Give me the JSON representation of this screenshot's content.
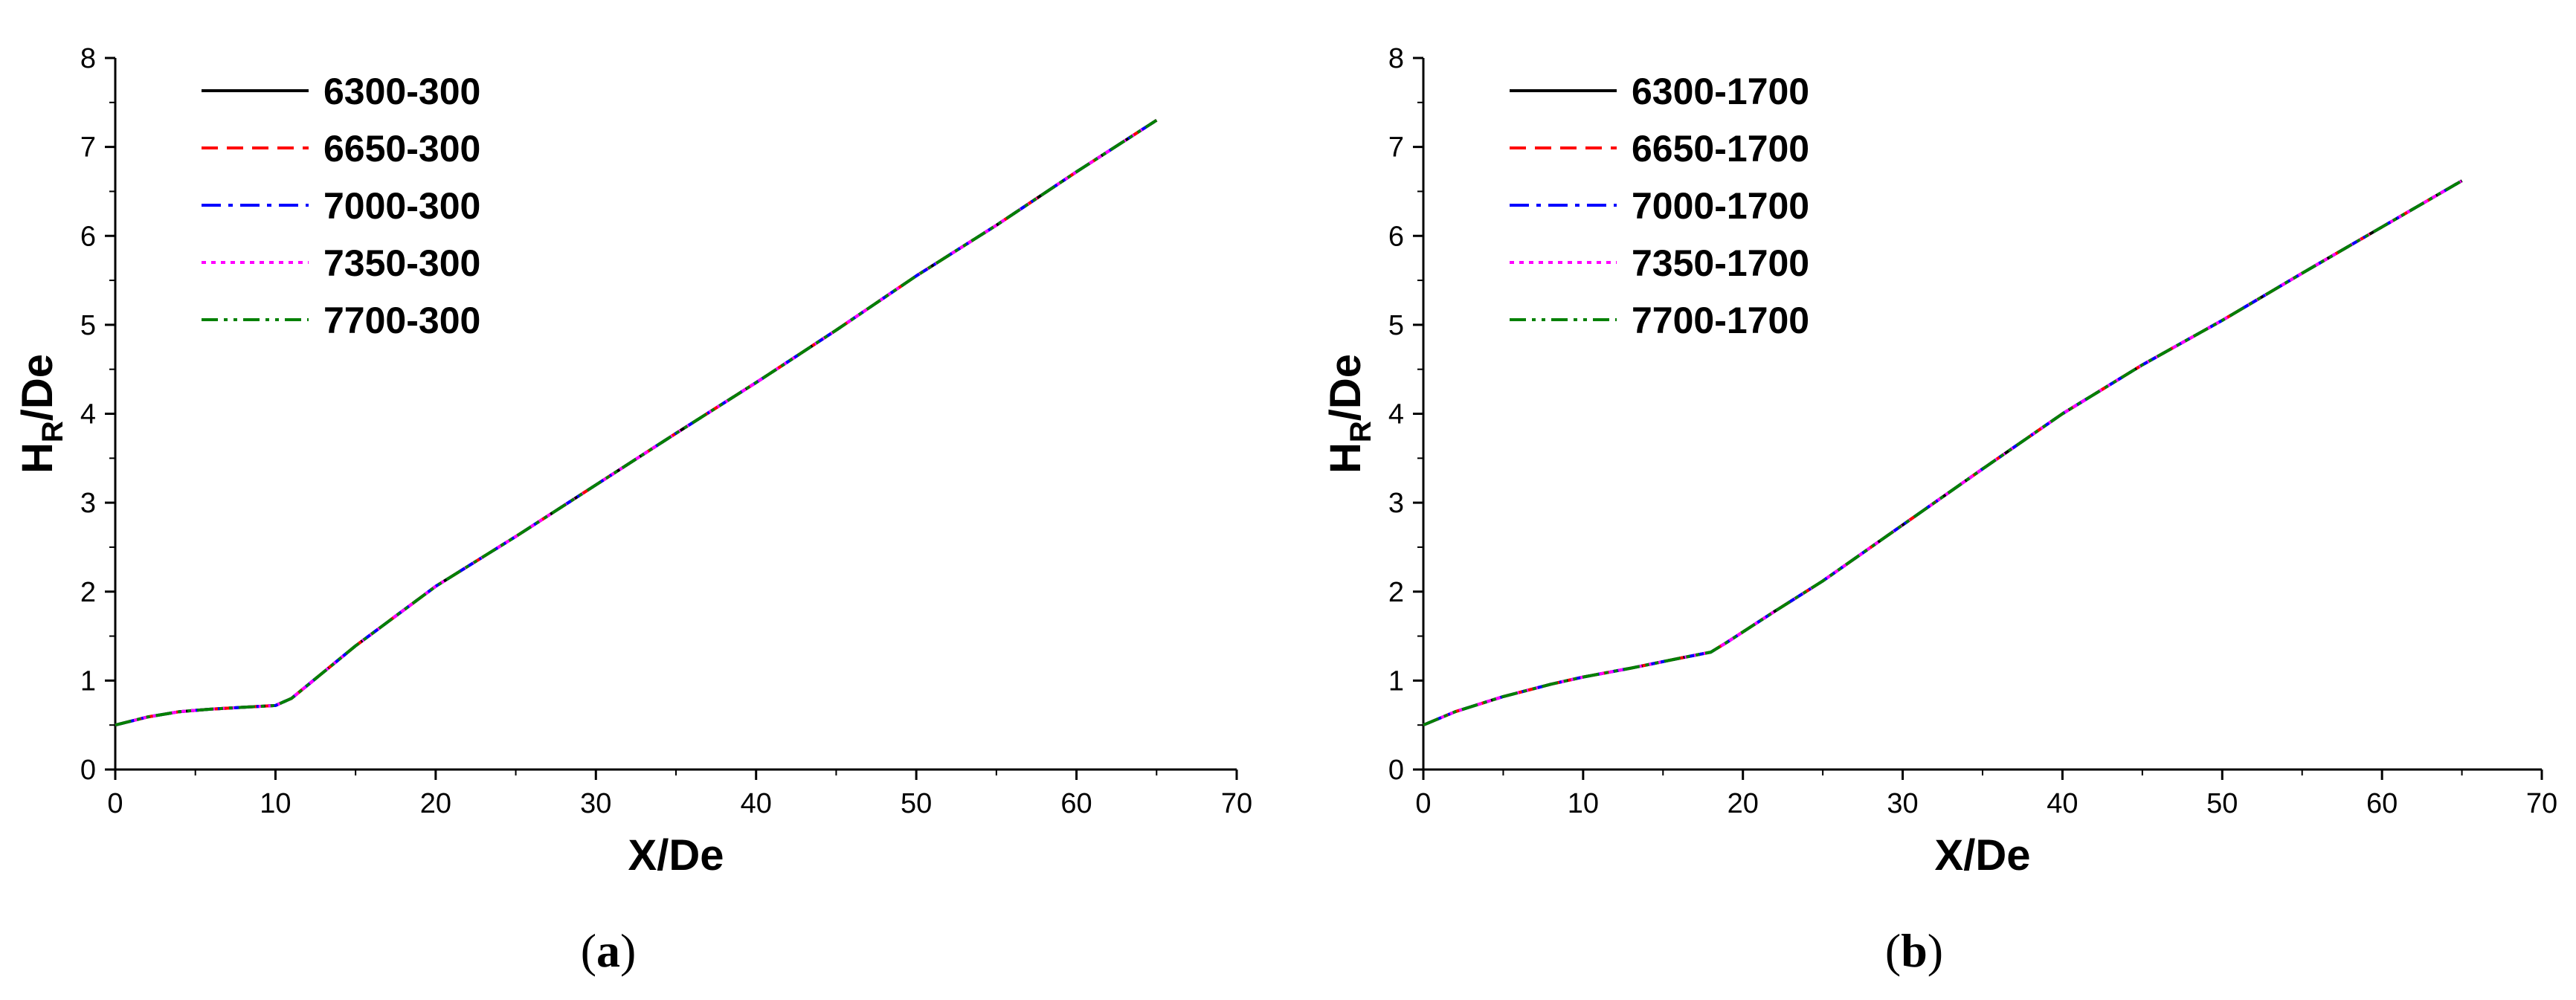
{
  "chart_data": [
    {
      "type": "line",
      "caption": {
        "open": "(",
        "letter": "a",
        "close": ")"
      },
      "xlabel": "X/De",
      "ylabel": {
        "main": "H",
        "sub": "R",
        "suffix": "/De"
      },
      "xlim": [
        0,
        70
      ],
      "ylim": [
        0,
        8
      ],
      "xticks": [
        0,
        10,
        20,
        30,
        40,
        50,
        60,
        70
      ],
      "yticks": [
        0,
        1,
        2,
        3,
        4,
        5,
        6,
        7,
        8
      ],
      "grid": false,
      "legend_position": "top-left",
      "x": [
        0,
        2,
        4,
        6,
        8,
        10,
        11,
        15,
        20,
        25,
        30,
        35,
        40,
        45,
        50,
        55,
        60,
        65
      ],
      "series": [
        {
          "name": "6300-300",
          "color": "#000000",
          "dash": "solid",
          "values": [
            0.5,
            0.59,
            0.65,
            0.68,
            0.7,
            0.72,
            0.8,
            1.39,
            2.06,
            2.62,
            3.2,
            3.78,
            4.35,
            4.94,
            5.55,
            6.12,
            6.72,
            7.3
          ]
        },
        {
          "name": "6650-300",
          "color": "#ff0000",
          "dash": "dashed",
          "values": [
            0.5,
            0.59,
            0.65,
            0.68,
            0.7,
            0.72,
            0.8,
            1.39,
            2.06,
            2.62,
            3.2,
            3.78,
            4.35,
            4.94,
            5.55,
            6.12,
            6.72,
            7.3
          ]
        },
        {
          "name": "7000-300",
          "color": "#0000ff",
          "dash": "dashdot",
          "values": [
            0.5,
            0.59,
            0.65,
            0.68,
            0.7,
            0.72,
            0.8,
            1.39,
            2.06,
            2.62,
            3.2,
            3.78,
            4.35,
            4.94,
            5.55,
            6.12,
            6.72,
            7.3
          ]
        },
        {
          "name": "7350-300",
          "color": "#ff00ff",
          "dash": "dotted",
          "values": [
            0.5,
            0.59,
            0.65,
            0.68,
            0.7,
            0.72,
            0.8,
            1.39,
            2.06,
            2.62,
            3.2,
            3.78,
            4.35,
            4.94,
            5.55,
            6.12,
            6.72,
            7.3
          ]
        },
        {
          "name": "7700-300",
          "color": "#008000",
          "dash": "dashdotdot",
          "values": [
            0.5,
            0.59,
            0.65,
            0.68,
            0.7,
            0.72,
            0.8,
            1.39,
            2.06,
            2.62,
            3.2,
            3.78,
            4.35,
            4.94,
            5.55,
            6.12,
            6.72,
            7.3
          ]
        }
      ]
    },
    {
      "type": "line",
      "caption": {
        "open": "(",
        "letter": "b",
        "close": ")"
      },
      "xlabel": "X/De",
      "ylabel": {
        "main": "H",
        "sub": "R",
        "suffix": "/De"
      },
      "xlim": [
        0,
        70
      ],
      "ylim": [
        0,
        8
      ],
      "xticks": [
        0,
        10,
        20,
        30,
        40,
        50,
        60,
        70
      ],
      "yticks": [
        0,
        1,
        2,
        3,
        4,
        5,
        6,
        7,
        8
      ],
      "grid": false,
      "legend_position": "top-left",
      "x": [
        0,
        2,
        5,
        8,
        10,
        13,
        16,
        18,
        19,
        22,
        25,
        30,
        35,
        40,
        45,
        50,
        55,
        60,
        65
      ],
      "series": [
        {
          "name": "6300-1700",
          "color": "#000000",
          "dash": "solid",
          "values": [
            0.5,
            0.65,
            0.82,
            0.96,
            1.04,
            1.14,
            1.25,
            1.32,
            1.43,
            1.78,
            2.12,
            2.75,
            3.38,
            4.0,
            4.55,
            5.05,
            5.58,
            6.1,
            6.62
          ]
        },
        {
          "name": "6650-1700",
          "color": "#ff0000",
          "dash": "dashed",
          "values": [
            0.5,
            0.65,
            0.82,
            0.96,
            1.04,
            1.14,
            1.25,
            1.32,
            1.43,
            1.78,
            2.12,
            2.75,
            3.38,
            4.0,
            4.55,
            5.05,
            5.58,
            6.1,
            6.62
          ]
        },
        {
          "name": "7000-1700",
          "color": "#0000ff",
          "dash": "dashdot",
          "values": [
            0.5,
            0.65,
            0.82,
            0.96,
            1.04,
            1.14,
            1.25,
            1.32,
            1.43,
            1.78,
            2.12,
            2.75,
            3.38,
            4.0,
            4.55,
            5.05,
            5.58,
            6.1,
            6.62
          ]
        },
        {
          "name": "7350-1700",
          "color": "#ff00ff",
          "dash": "dotted",
          "values": [
            0.5,
            0.65,
            0.82,
            0.96,
            1.04,
            1.14,
            1.25,
            1.32,
            1.43,
            1.78,
            2.12,
            2.75,
            3.38,
            4.0,
            4.55,
            5.05,
            5.58,
            6.1,
            6.62
          ]
        },
        {
          "name": "7700-1700",
          "color": "#008000",
          "dash": "dashdotdot",
          "values": [
            0.5,
            0.65,
            0.82,
            0.96,
            1.04,
            1.14,
            1.25,
            1.32,
            1.43,
            1.78,
            2.12,
            2.75,
            3.38,
            4.0,
            4.55,
            5.05,
            5.58,
            6.1,
            6.62
          ]
        }
      ]
    }
  ]
}
